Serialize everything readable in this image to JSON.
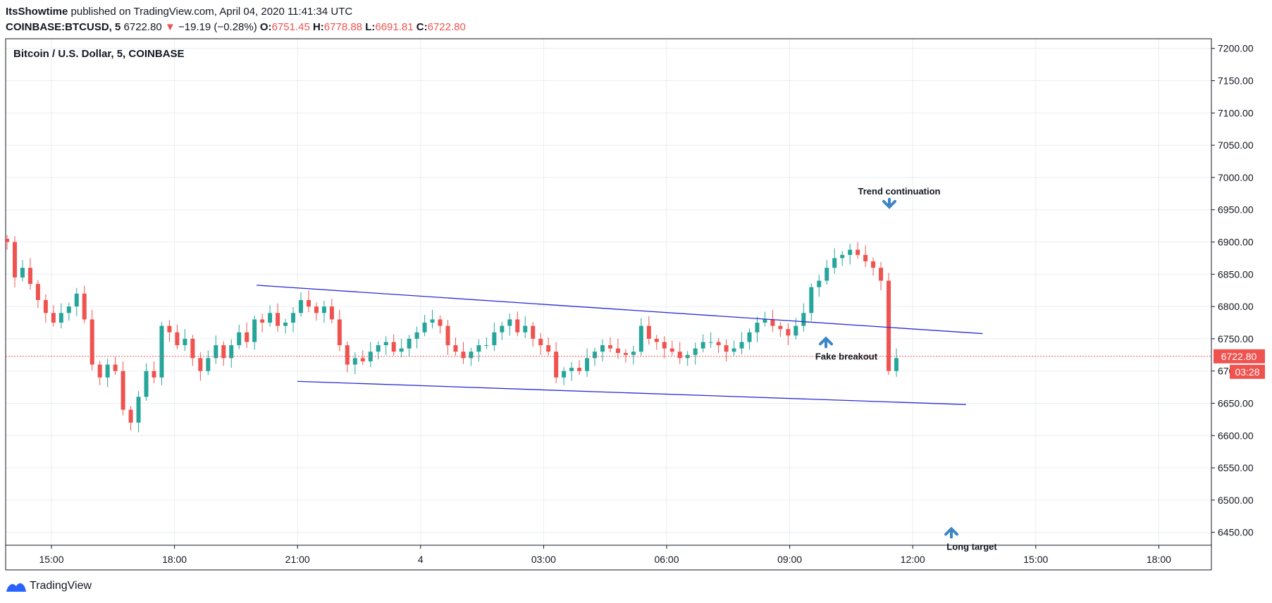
{
  "header": {
    "author": "ItsShowtime",
    "published_text": " published on TradingView.com, April 04, 2020 11:41:34 UTC",
    "symbol": "COINBASE:BTCUSD, 5",
    "last_price": "6722.80",
    "change_arrow": "▼",
    "change": "−19.19 (−0.28%)",
    "open_label": "O:",
    "open": "6751.45",
    "high_label": "H:",
    "high": "6778.88",
    "low_label": "L:",
    "low": "6691.81",
    "close_label": "C:",
    "close": "6722.80"
  },
  "footer": {
    "brand": "TradingView"
  },
  "colors": {
    "up": "#26a69a",
    "down": "#ef5350",
    "trendline": "#2b2bd6",
    "annotation_arrow": "#3d85c6",
    "grid": "#e9eef2",
    "price_tag": "#ef5350"
  },
  "chart_data": {
    "type": "candlestick",
    "title": "Bitcoin / U.S. Dollar, 5, COINBASE",
    "ylim": [
      6430,
      7215
    ],
    "y_ticks": [
      "7200.00",
      "7150.00",
      "7100.00",
      "7050.00",
      "7000.00",
      "6950.00",
      "6900.00",
      "6850.00",
      "6800.00",
      "6750.00",
      "6700.00",
      "6650.00",
      "6600.00",
      "6550.00",
      "6500.00",
      "6450.00"
    ],
    "x_ticks": [
      "15:00",
      "18:00",
      "21:00",
      "4",
      "03:00",
      "06:00",
      "09:00",
      "12:00",
      "15:00",
      "18:00"
    ],
    "last_price_label": "6722.80",
    "countdown_label": "03:28",
    "series": [
      {
        "name": "price",
        "values": [
          6900,
          6845,
          6860,
          6835,
          6810,
          6790,
          6775,
          6790,
          6800,
          6820,
          6780,
          6710,
          6690,
          6710,
          6700,
          6640,
          6620,
          6660,
          6700,
          6690,
          6770,
          6760,
          6740,
          6750,
          6720,
          6700,
          6720,
          6740,
          6720,
          6740,
          6760,
          6745,
          6780,
          6775,
          6790,
          6770,
          6775,
          6790,
          6810,
          6800,
          6790,
          6800,
          6780,
          6740,
          6710,
          6720,
          6715,
          6730,
          6740,
          6745,
          6730,
          6735,
          6750,
          6760,
          6775,
          6780,
          6770,
          6740,
          6730,
          6720,
          6730,
          6740,
          6740,
          6760,
          6770,
          6780,
          6760,
          6770,
          6750,
          6740,
          6730,
          6690,
          6700,
          6705,
          6700,
          6720,
          6730,
          6740,
          6735,
          6728,
          6725,
          6730,
          6770,
          6750,
          6745,
          6735,
          6730,
          6720,
          6725,
          6735,
          6745,
          6745,
          6740,
          6730,
          6735,
          6745,
          6760,
          6775,
          6780,
          6770,
          6765,
          6755,
          6770,
          6790,
          6830,
          6840,
          6860,
          6875,
          6880,
          6888,
          6880,
          6870,
          6860,
          6840,
          6700,
          6720
        ]
      }
    ],
    "annotations": [
      {
        "text": "Trend continuation",
        "price": 6952,
        "arrow": "down"
      },
      {
        "text": "Fake breakout",
        "price": 6755,
        "arrow": "up"
      },
      {
        "text": "Long target",
        "price": 6460,
        "arrow": "up"
      }
    ],
    "trendlines": [
      {
        "name": "upper-channel",
        "from": {
          "t": 20.0,
          "price": 6833
        },
        "to": {
          "t": 13.7,
          "price": 6758
        }
      },
      {
        "name": "lower-channel",
        "from": {
          "t": 21.0,
          "price": 6684
        },
        "to": {
          "t": 13.3,
          "price": 6648
        }
      }
    ]
  }
}
